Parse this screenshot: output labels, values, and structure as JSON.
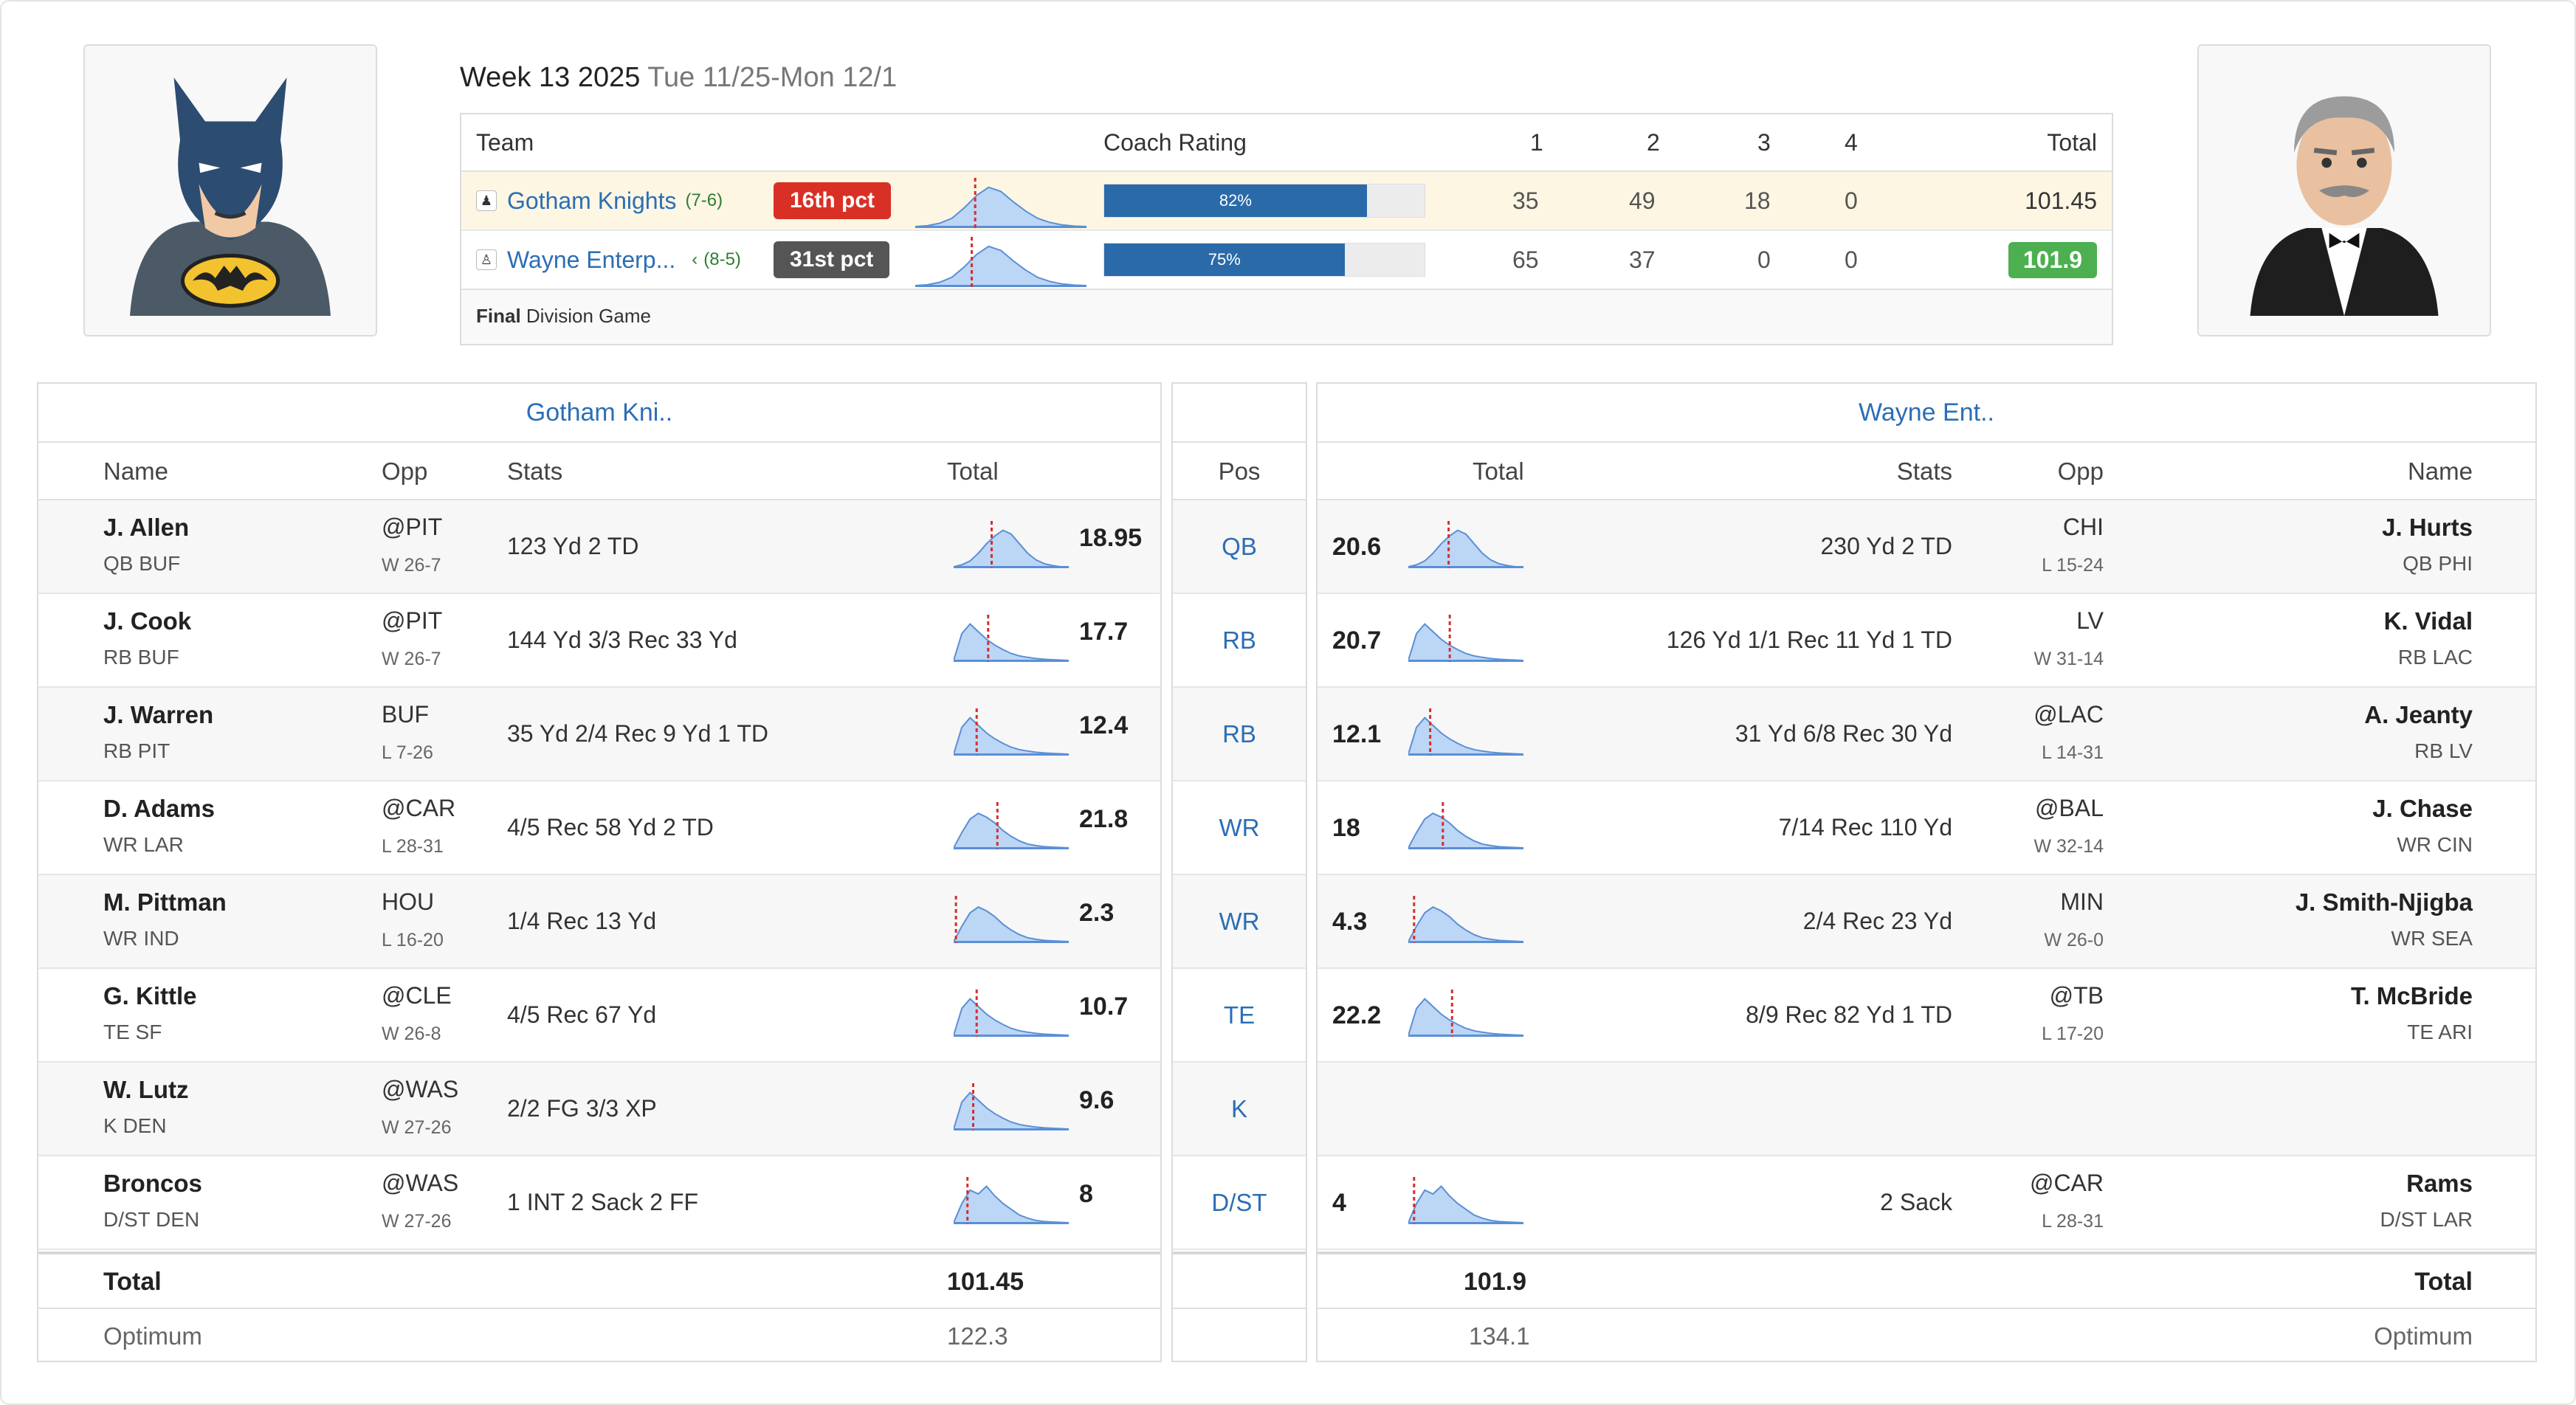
{
  "header": {
    "week": "Week 13 2025",
    "dates": "Tue 11/25-Mon 12/1"
  },
  "matchup": {
    "columns": {
      "team": "Team",
      "coach": "Coach Rating",
      "q1": "1",
      "q2": "2",
      "q3": "3",
      "q4": "4",
      "total": "Total"
    },
    "teams": [
      {
        "name": "Gotham Knights",
        "record": "(7-6)",
        "pct": "16th pct",
        "pct_color": "#d93025",
        "coach": "82%",
        "coach_value": 0.82,
        "q1": "35",
        "q2": "49",
        "q3": "18",
        "q4": "0",
        "total": "101.45"
      },
      {
        "name": "Wayne Enterp...",
        "record": "(8-5)",
        "arrow": "‹",
        "pct": "31st pct",
        "pct_color": "#555555",
        "coach": "75%",
        "coach_value": 0.75,
        "q1": "65",
        "q2": "37",
        "q3": "0",
        "q4": "0",
        "total": "101.9"
      }
    ],
    "footer_bold": "Final",
    "footer_text": "Division Game"
  },
  "left": {
    "title": "Gotham Kni..",
    "headers": {
      "name": "Name",
      "opp": "Opp",
      "stats": "Stats",
      "total": "Total"
    },
    "players": [
      {
        "name": "J. Allen",
        "pos": "QB BUF",
        "opp": "@PIT",
        "result": "W 26-7",
        "stats": "123 Yd 2 TD",
        "total": "18.95",
        "dist": "qb",
        "mark": 0.33
      },
      {
        "name": "J. Cook",
        "pos": "RB BUF",
        "opp": "@PIT",
        "result": "W 26-7",
        "stats": "144 Yd 3/3 Rec 33 Yd",
        "total": "17.7",
        "dist": "rb",
        "mark": 0.3
      },
      {
        "name": "J. Warren",
        "pos": "RB PIT",
        "opp": "BUF",
        "result": "L 7-26",
        "stats": "35 Yd 2/4 Rec 9 Yd 1 TD",
        "total": "12.4",
        "dist": "rb",
        "mark": 0.2
      },
      {
        "name": "D. Adams",
        "pos": "WR LAR",
        "opp": "@CAR",
        "result": "L 28-31",
        "stats": "4/5 Rec 58 Yd 2 TD",
        "total": "21.8",
        "dist": "wr",
        "mark": 0.38
      },
      {
        "name": "M. Pittman",
        "pos": "WR IND",
        "opp": "HOU",
        "result": "L 16-20",
        "stats": "1/4 Rec 13 Yd",
        "total": "2.3",
        "dist": "wr",
        "mark": 0.02
      },
      {
        "name": "G. Kittle",
        "pos": "TE SF",
        "opp": "@CLE",
        "result": "W 26-8",
        "stats": "4/5 Rec 67 Yd",
        "total": "10.7",
        "dist": "rb",
        "mark": 0.2
      },
      {
        "name": "W. Lutz",
        "pos": "K DEN",
        "opp": "@WAS",
        "result": "W 27-26",
        "stats": "2/2 FG 3/3 XP",
        "total": "9.6",
        "dist": "rb",
        "mark": 0.17
      },
      {
        "name": "Broncos",
        "pos": "D/ST DEN",
        "opp": "@WAS",
        "result": "W 27-26",
        "stats": "1 INT 2 Sack 2 FF",
        "total": "8",
        "dist": "dst",
        "mark": 0.12
      }
    ],
    "total_label": "Total",
    "total": "101.45",
    "optimum_label": "Optimum",
    "optimum": "122.3"
  },
  "positions": {
    "header": "Pos",
    "list": [
      "QB",
      "RB",
      "RB",
      "WR",
      "WR",
      "TE",
      "K",
      "D/ST"
    ]
  },
  "right": {
    "title": "Wayne Ent..",
    "headers": {
      "total": "Total",
      "stats": "Stats",
      "opp": "Opp",
      "name": "Name"
    },
    "players": [
      {
        "name": "J. Hurts",
        "pos": "QB PHI",
        "opp": "CHI",
        "result": "L 15-24",
        "stats": "230 Yd 2 TD",
        "total": "20.6",
        "dist": "qb",
        "mark": 0.35
      },
      {
        "name": "K. Vidal",
        "pos": "RB LAC",
        "opp": "LV",
        "result": "W 31-14",
        "stats": "126 Yd 1/1 Rec 11 Yd 1 TD",
        "total": "20.7",
        "dist": "rb",
        "mark": 0.36
      },
      {
        "name": "A. Jeanty",
        "pos": "RB LV",
        "opp": "@LAC",
        "result": "L 14-31",
        "stats": "31 Yd 6/8 Rec 30 Yd",
        "total": "12.1",
        "dist": "rb",
        "mark": 0.19
      },
      {
        "name": "J. Chase",
        "pos": "WR CIN",
        "opp": "@BAL",
        "result": "W 32-14",
        "stats": "7/14 Rec 110 Yd",
        "total": "18",
        "dist": "wr",
        "mark": 0.3
      },
      {
        "name": "J. Smith-Njigba",
        "pos": "WR SEA",
        "opp": "MIN",
        "result": "W 26-0",
        "stats": "2/4 Rec 23 Yd",
        "total": "4.3",
        "dist": "wr",
        "mark": 0.05
      },
      {
        "name": "T. McBride",
        "pos": "TE ARI",
        "opp": "@TB",
        "result": "L 17-20",
        "stats": "8/9 Rec 82 Yd 1 TD",
        "total": "22.2",
        "dist": "rb",
        "mark": 0.38
      },
      null,
      {
        "name": "Rams",
        "pos": "D/ST LAR",
        "opp": "@CAR",
        "result": "L 28-31",
        "stats": "2 Sack",
        "total": "4",
        "dist": "dst",
        "mark": 0.05
      }
    ],
    "total_label": "Total",
    "total": "101.9",
    "optimum_label": "Optimum",
    "optimum": "134.1"
  },
  "colors": {
    "link": "#2b6eb5",
    "spark_fill": "#bcd6f5",
    "spark_line": "#5a8fd6",
    "marker": "#d32f2f",
    "win": "#4caf50",
    "highlight_row": "#fcf6e3"
  },
  "icons": {
    "left_avatar": "batman-avatar",
    "right_avatar": "butler-avatar",
    "team_logo": "team-logo-icon"
  }
}
